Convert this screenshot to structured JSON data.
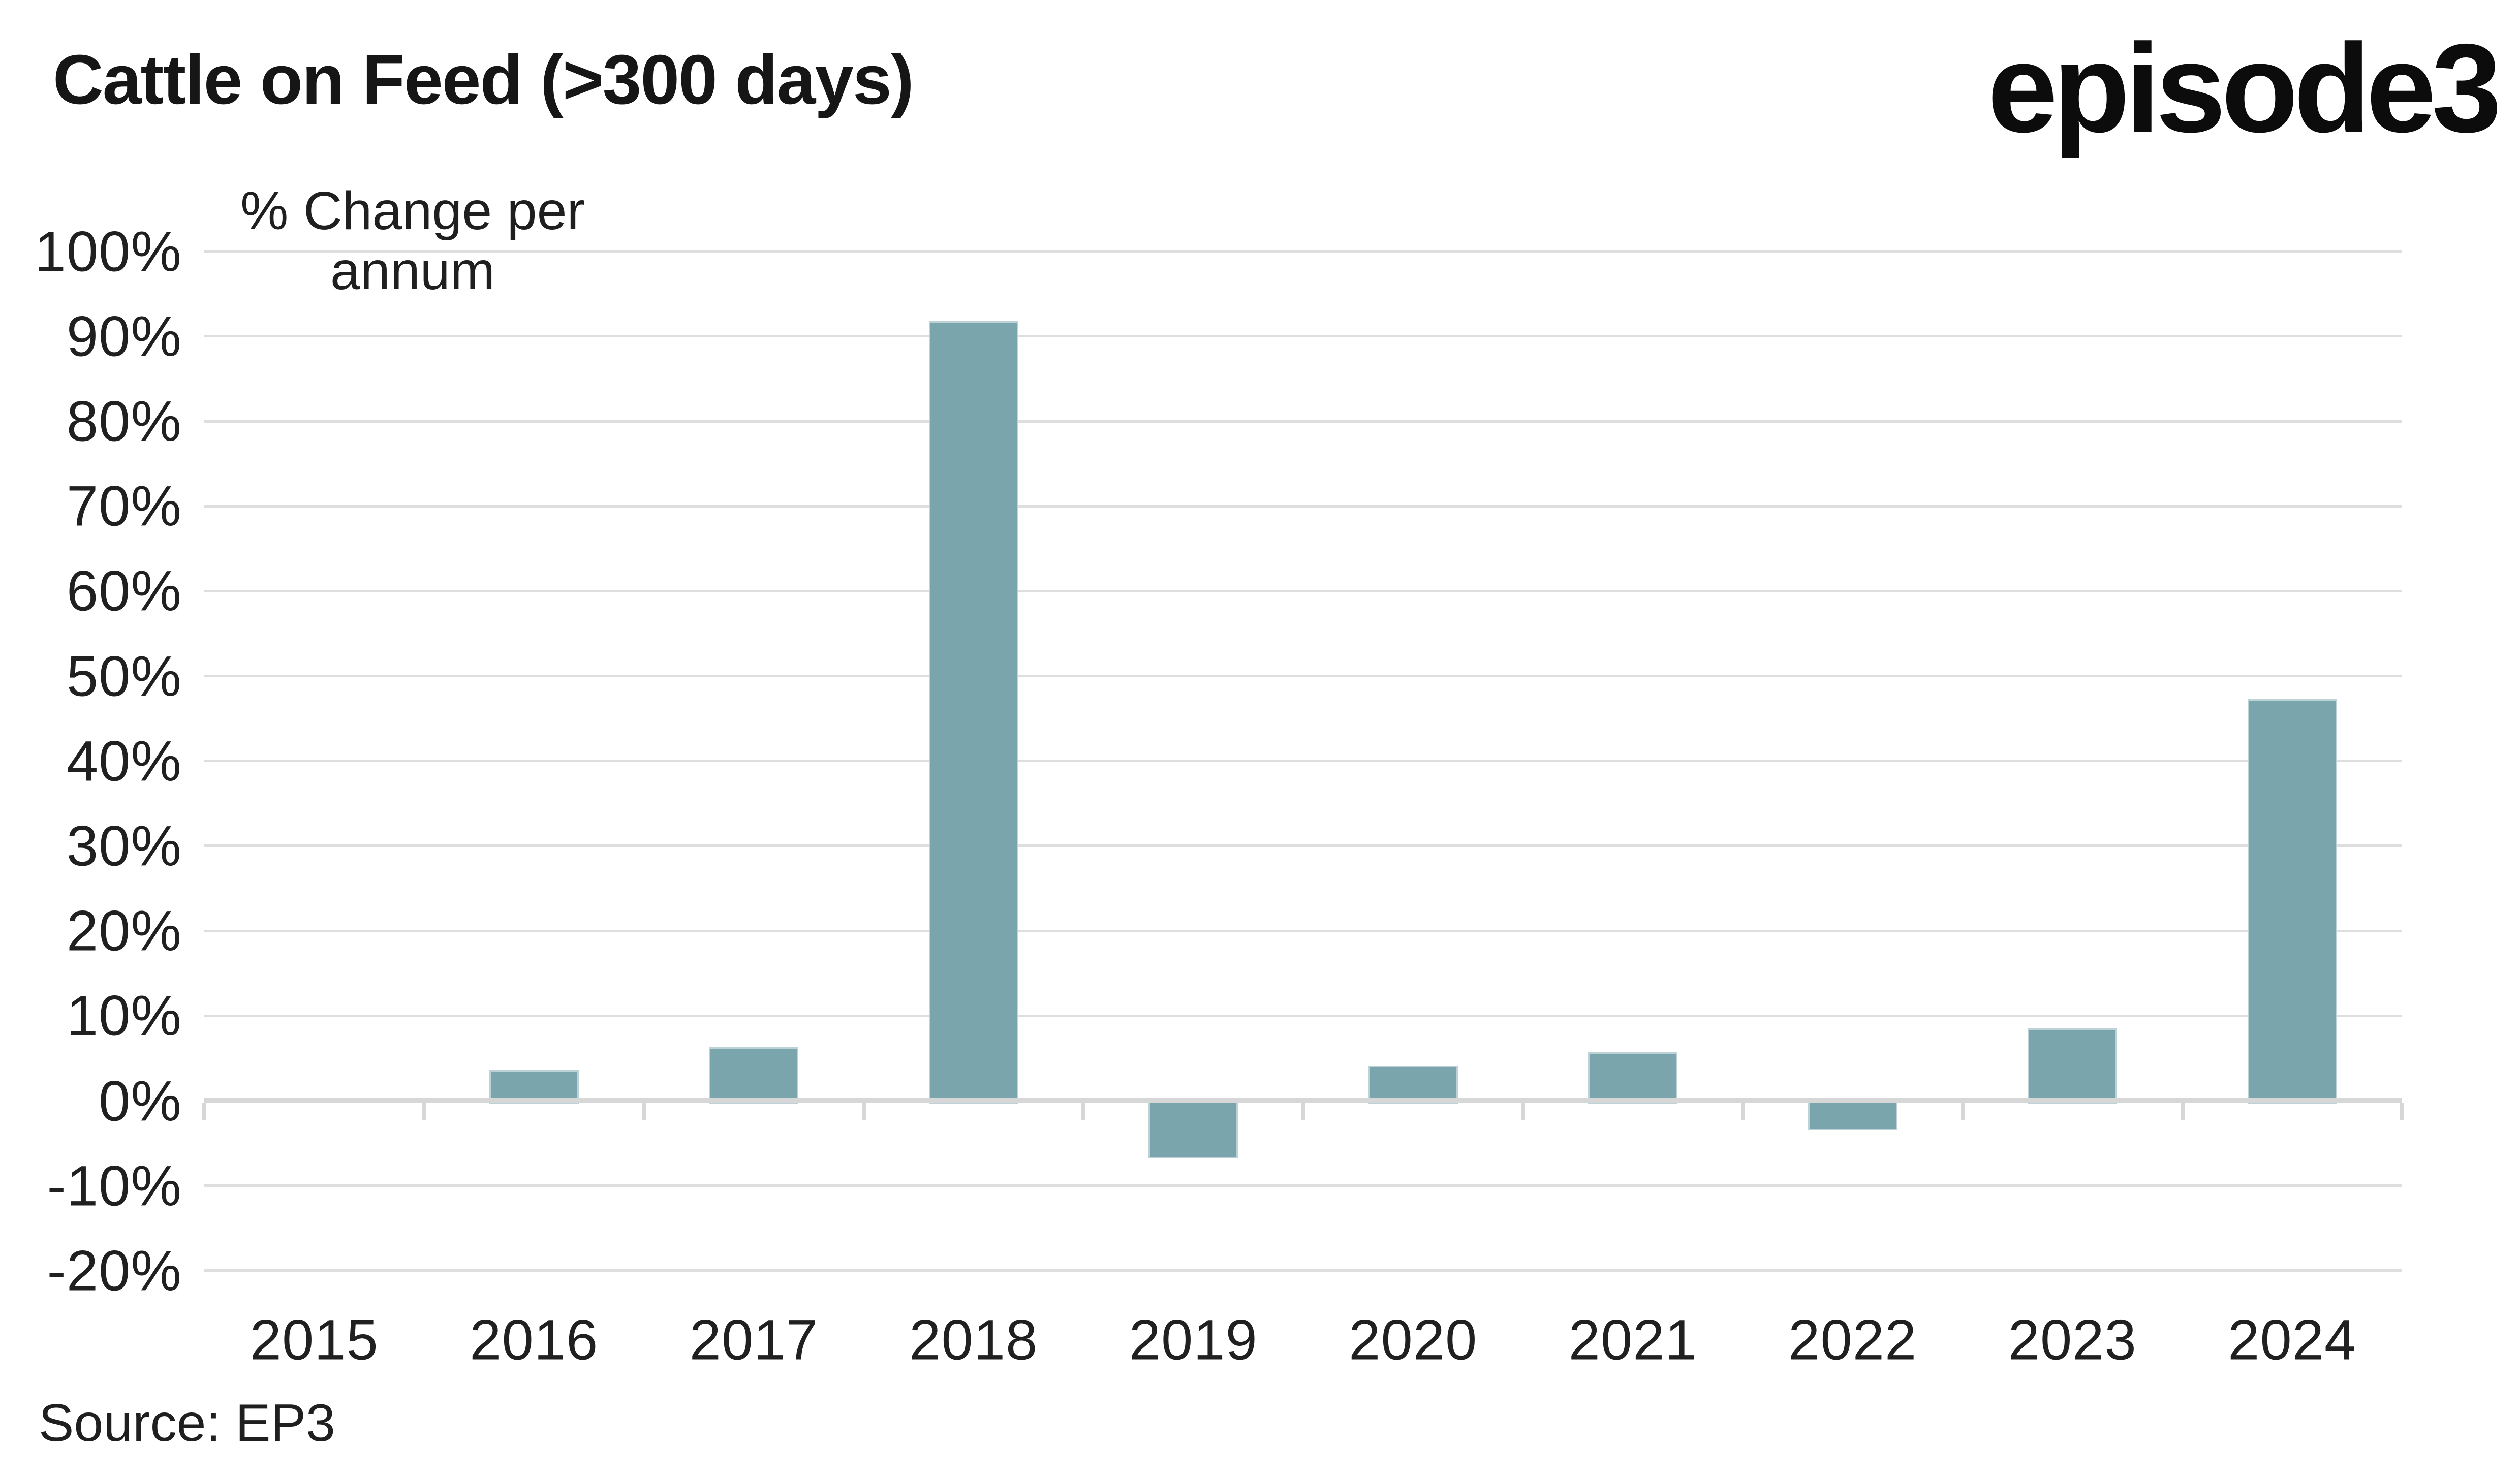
{
  "header": {
    "title": "Cattle on Feed (>300 days)",
    "logo": "episode3"
  },
  "plot": {
    "y_axis_title_line1": "% Change per",
    "y_axis_title_line2": "annum"
  },
  "footer": {
    "source": "Source: EP3"
  },
  "colors": {
    "bar": "#7AA5AC",
    "grid": "#DEDEDE",
    "zero_axis": "#D7D7D7",
    "text": "#202020"
  },
  "chart_data": {
    "type": "bar",
    "title": "Cattle on Feed (>300 days)",
    "ylabel": "% Change per annum",
    "xlabel": "",
    "categories": [
      "2015",
      "2016",
      "2017",
      "2018",
      "2019",
      "2020",
      "2021",
      "2022",
      "2023",
      "2024"
    ],
    "values": [
      0.0,
      3.6,
      6.3,
      91.8,
      -6.8,
      4.1,
      5.7,
      -3.5,
      8.5,
      47.3
    ],
    "ylim": [
      -20,
      100
    ],
    "ytick_step": 10,
    "ytick_suffix": "%",
    "grid": true,
    "legend": "none",
    "bar_color": "#7AA5AC",
    "source": "Source: EP3"
  }
}
